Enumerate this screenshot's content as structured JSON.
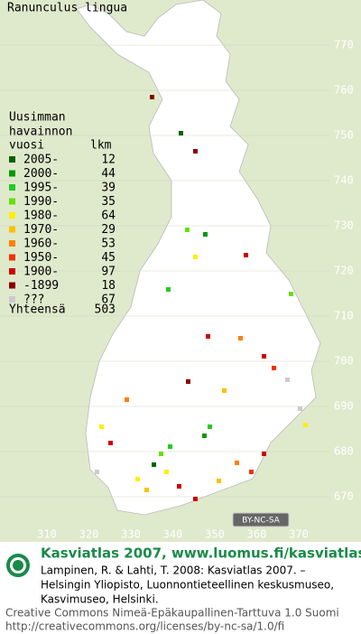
{
  "title": "Ranunculus lingua",
  "legend": {
    "heading": [
      "Uusimman",
      "havainnon"
    ],
    "col_year": "vuosi",
    "col_count": "lkm",
    "rows": [
      {
        "label": "2005-",
        "count": 12,
        "color": "#006400"
      },
      {
        "label": "2000-",
        "count": 44,
        "color": "#009a00"
      },
      {
        "label": "1995-",
        "count": 39,
        "color": "#22cc22"
      },
      {
        "label": "1990-",
        "count": 35,
        "color": "#66e000"
      },
      {
        "label": "1980-",
        "count": 64,
        "color": "#ffee00"
      },
      {
        "label": "1970-",
        "count": 29,
        "color": "#ffc000"
      },
      {
        "label": "1960-",
        "count": 53,
        "color": "#ff8000"
      },
      {
        "label": "1950-",
        "count": 45,
        "color": "#ee3300"
      },
      {
        "label": "1900-",
        "count": 97,
        "color": "#cc0000"
      },
      {
        "label": "-1899",
        "count": 18,
        "color": "#880000"
      },
      {
        "label": "???",
        "count": 67,
        "color": "#cccccc"
      }
    ],
    "total_label": "Yhteensä",
    "total": 503
  },
  "map": {
    "y_labels": [
      "770",
      "760",
      "750",
      "740",
      "730",
      "720",
      "710",
      "700",
      "690",
      "680",
      "670"
    ],
    "x_labels": [
      "310",
      "320",
      "330",
      "340",
      "350",
      "360",
      "370"
    ]
  },
  "badge": "BY-NC-SA",
  "footer": {
    "title": "Kasviatlas 2007, www.luomus.fi/kasviatlas",
    "citation": [
      "Lampinen, R. & Lahti, T. 2008: Kasviatlas 2007. –",
      "Helsingin Yliopisto, Luonnontieteellinen keskusmuseo,",
      "Kasvimuseo, Helsinki."
    ],
    "license": [
      "Creative Commons Nimeä-Epäkaupallinen-Tarttuva 1.0 Suomi",
      "http://creativecommons.org/licenses/by-nc-sa/1.0/fi"
    ]
  }
}
